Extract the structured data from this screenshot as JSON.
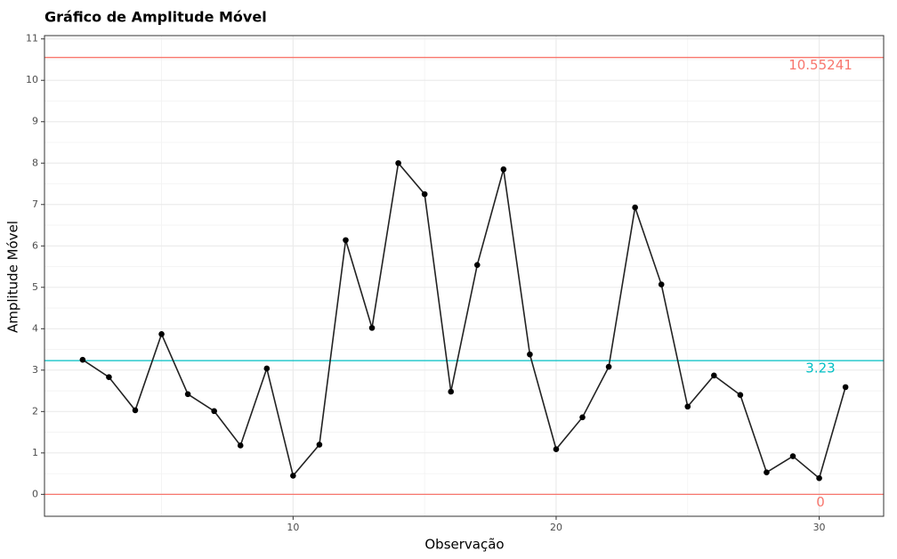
{
  "chart_data": {
    "type": "line",
    "title": "Gráfico de Amplitude Móvel",
    "x_label": "Observação",
    "y_label": "Amplitude Móvel",
    "x": [
      2,
      3,
      4,
      5,
      6,
      7,
      8,
      9,
      10,
      11,
      12,
      13,
      14,
      15,
      16,
      17,
      18,
      19,
      20,
      21,
      22,
      23,
      24,
      25,
      26,
      27,
      28,
      29,
      30,
      31
    ],
    "series": [
      {
        "color": "#222222",
        "values": [
          3.25,
          2.83,
          2.03,
          3.87,
          2.42,
          2.01,
          1.18,
          3.04,
          0.45,
          1.2,
          6.14,
          4.02,
          8.0,
          7.25,
          2.48,
          5.54,
          7.85,
          3.38,
          1.09,
          1.86,
          3.08,
          6.93,
          5.07,
          2.12,
          2.87,
          2.4,
          0.53,
          0.92,
          0.39,
          2.59
        ]
      }
    ],
    "reference_lines": [
      {
        "value": 10.55241,
        "color": "#F8766D"
      },
      {
        "value": 3.23,
        "color": "#00BFC4"
      },
      {
        "value": 0,
        "color": "#F8766D"
      }
    ],
    "xlim": [
      0.55,
      32.45
    ],
    "ylim": [
      -0.53,
      11.08
    ],
    "xticks": [
      10,
      20,
      30
    ],
    "yticks": [
      0,
      1,
      2,
      3,
      4,
      5,
      6,
      7,
      8,
      9,
      10,
      11
    ],
    "xminor": [
      5,
      15,
      25
    ],
    "yminor": [
      0.5,
      1.5,
      2.5,
      3.5,
      4.5,
      5.5,
      6.5,
      7.5,
      8.5,
      9.5,
      10.5
    ],
    "grid": true
  }
}
